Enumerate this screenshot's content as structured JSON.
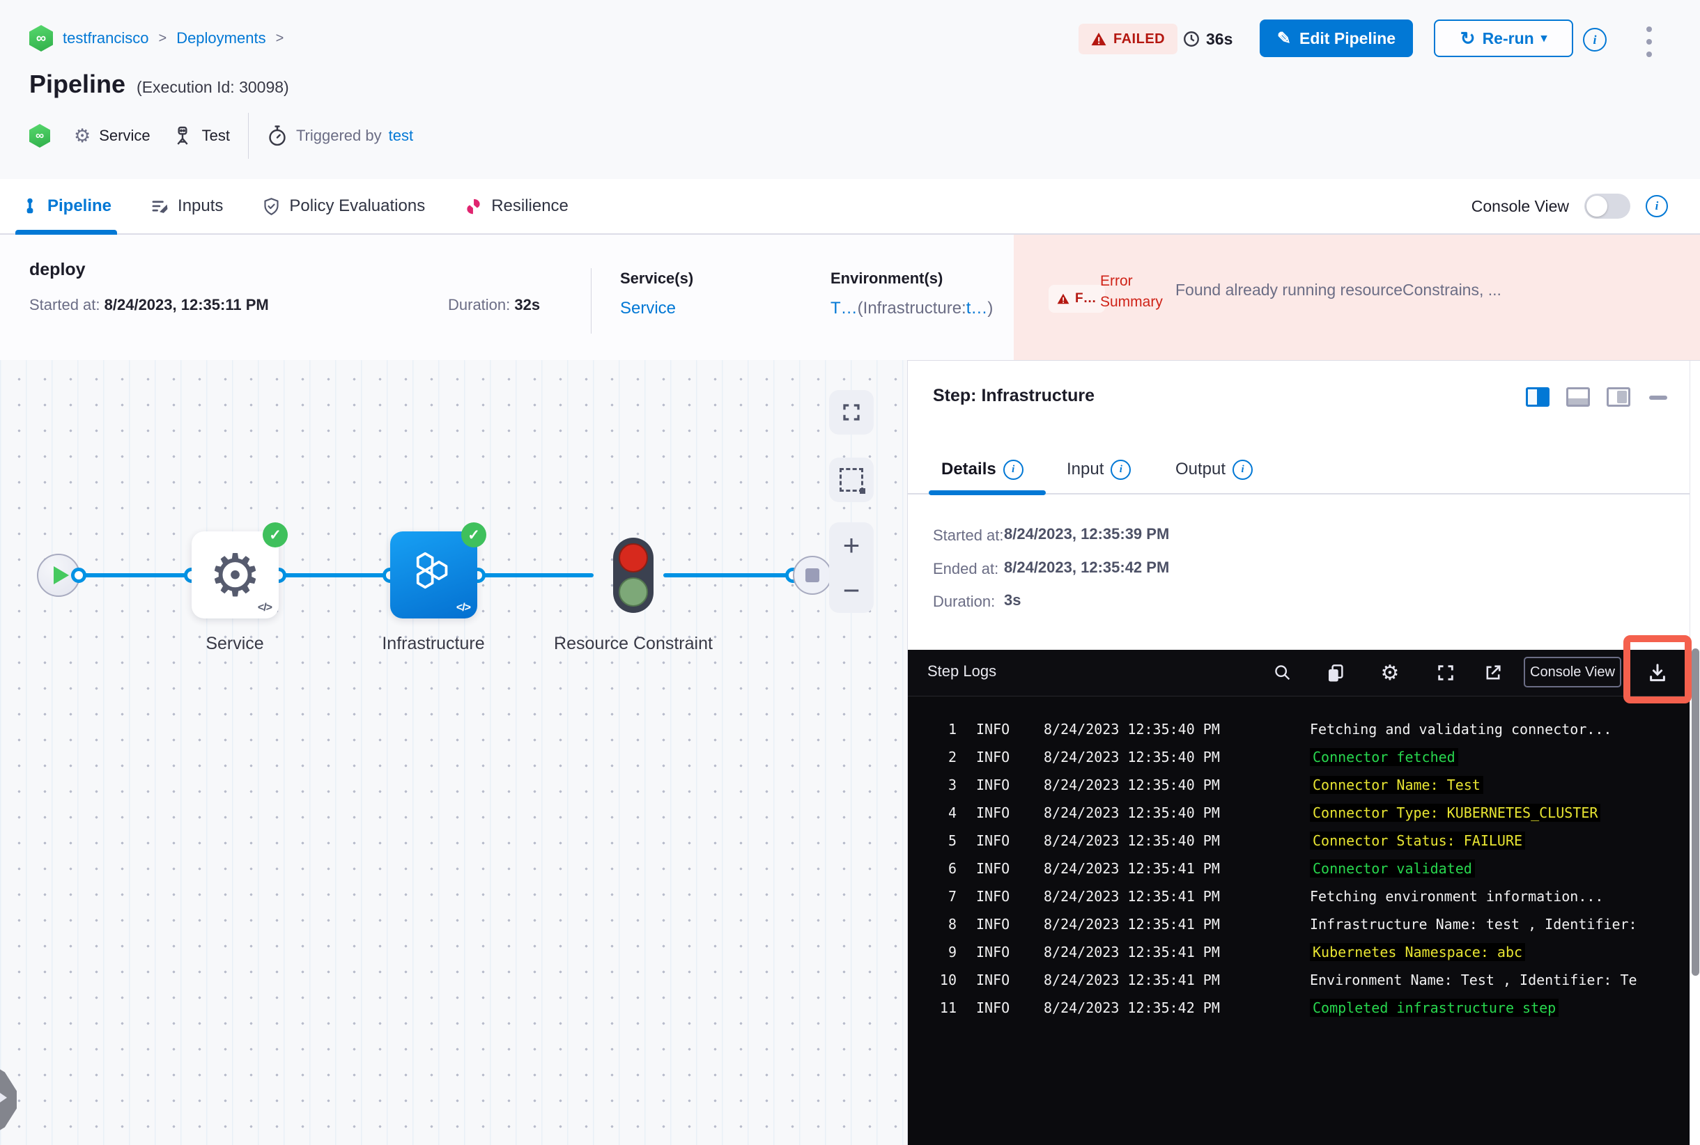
{
  "breadcrumb": {
    "project": "testfrancisco",
    "section": "Deployments"
  },
  "header": {
    "status": "FAILED",
    "elapsed": "36s",
    "edit_button": "Edit Pipeline",
    "rerun_button": "Re-run",
    "title": "Pipeline",
    "execution_id": "(Execution Id: 30098)",
    "service_chip": "Service",
    "stage_chip": "Test",
    "triggered_by_label": "Triggered by",
    "triggered_by_user": "test"
  },
  "tabs": {
    "items": [
      {
        "label": "Pipeline"
      },
      {
        "label": "Inputs"
      },
      {
        "label": "Policy Evaluations"
      },
      {
        "label": "Resilience"
      }
    ],
    "console_view_label": "Console View"
  },
  "stage": {
    "name": "deploy",
    "started_label": "Started at:",
    "started_value": "8/24/2023, 12:35:11 PM",
    "duration_label": "Duration:",
    "duration_value": "32s",
    "services_label": "Service(s)",
    "service_link": "Service",
    "environments_label": "Environment(s)",
    "environment_primary": "T…",
    "environment_paren_open": "(Infrastructure:",
    "environment_infra": "t…",
    "environment_paren_close": ")",
    "error_badge": "F…",
    "error_label_line1": "Error",
    "error_label_line2": "Summary",
    "error_message": "Found already running resourceConstrains, ..."
  },
  "graph": {
    "nodes": [
      {
        "label": "Service"
      },
      {
        "label": "Infrastructure"
      },
      {
        "label": "Resource Constraint"
      }
    ],
    "code_mark": "</>"
  },
  "step_panel": {
    "title": "Step: Infrastructure",
    "tabs": [
      {
        "label": "Details"
      },
      {
        "label": "Input"
      },
      {
        "label": "Output"
      }
    ],
    "details": {
      "started_label": "Started at:",
      "started_value": "8/24/2023, 12:35:39 PM",
      "ended_label": "Ended at:",
      "ended_value": "8/24/2023, 12:35:42 PM",
      "duration_label": "Duration:",
      "duration_value": "3s"
    }
  },
  "logs": {
    "title": "Step Logs",
    "console_view_button": "Console View",
    "colors": {
      "info": "#f1f1f2",
      "green": "#28d74e",
      "yellow": "#e8e532"
    },
    "lines": [
      {
        "n": "1",
        "level": "INFO",
        "time": "8/24/2023 12:35:40 PM",
        "message": "Fetching and validating connector...",
        "color": "info"
      },
      {
        "n": "2",
        "level": "INFO",
        "time": "8/24/2023 12:35:40 PM",
        "message": "Connector fetched",
        "color": "green"
      },
      {
        "n": "3",
        "level": "INFO",
        "time": "8/24/2023 12:35:40 PM",
        "message": "Connector Name: Test",
        "color": "yellow"
      },
      {
        "n": "4",
        "level": "INFO",
        "time": "8/24/2023 12:35:40 PM",
        "message": "Connector Type: KUBERNETES_CLUSTER",
        "color": "yellow"
      },
      {
        "n": "5",
        "level": "INFO",
        "time": "8/24/2023 12:35:40 PM",
        "message": "Connector Status: FAILURE",
        "color": "yellow"
      },
      {
        "n": "6",
        "level": "INFO",
        "time": "8/24/2023 12:35:41 PM",
        "message": "Connector validated",
        "color": "green"
      },
      {
        "n": "7",
        "level": "INFO",
        "time": "8/24/2023 12:35:41 PM",
        "message": "Fetching environment information...",
        "color": "info"
      },
      {
        "n": "8",
        "level": "INFO",
        "time": "8/24/2023 12:35:41 PM",
        "message": "Infrastructure Name: test , Identifier:",
        "color": "info"
      },
      {
        "n": "9",
        "level": "INFO",
        "time": "8/24/2023 12:35:41 PM",
        "message": "Kubernetes Namespace: abc",
        "color": "yellow"
      },
      {
        "n": "10",
        "level": "INFO",
        "time": "8/24/2023 12:35:41 PM",
        "message": "Environment Name: Test , Identifier: Te",
        "color": "info"
      },
      {
        "n": "11",
        "level": "INFO",
        "time": "8/24/2023 12:35:42 PM",
        "message": "Completed infrastructure step",
        "color": "green"
      }
    ]
  }
}
